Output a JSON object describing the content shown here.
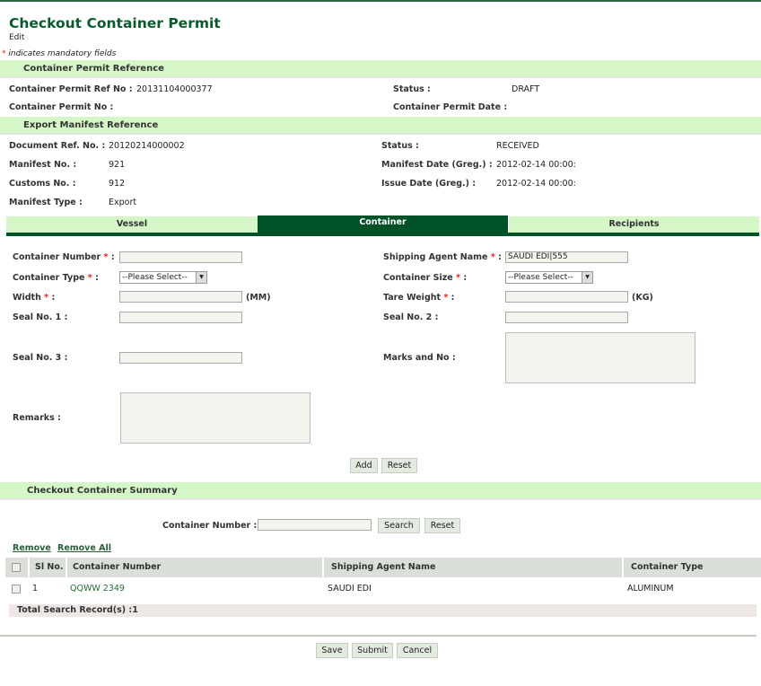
{
  "header": {
    "title": "Checkout Container Permit",
    "subtitle": "Edit",
    "mandatory_note": "indicates mandatory fields",
    "asterisk": "*"
  },
  "permit_ref": {
    "section": "Container Permit Reference",
    "ref_no_label": "Container Permit Ref No :",
    "ref_no": "20131104000377",
    "status_label": "Status :",
    "status": "DRAFT",
    "permit_no_label": "Container Permit No :",
    "permit_date_label": "Container Permit Date :"
  },
  "manifest_ref": {
    "section": "Export Manifest Reference",
    "doc_ref_label": "Document Ref. No. :",
    "doc_ref": "20120214000002",
    "status_label": "Status :",
    "status": "RECEIVED",
    "manifest_no_label": "Manifest No. :",
    "manifest_no": "921",
    "manifest_date_label": "Manifest Date (Greg.) :",
    "manifest_date": "2012-02-14 00:00:",
    "customs_no_label": "Customs No. :",
    "customs_no": "912",
    "issue_date_label": "Issue Date (Greg.) :",
    "issue_date": "2012-02-14 00:00:",
    "manifest_type_label": "Manifest Type :",
    "manifest_type": "Export"
  },
  "tabs": [
    {
      "label": "Vessel"
    },
    {
      "label": "Container",
      "active": true
    },
    {
      "label": "Recipients"
    }
  ],
  "form": {
    "container_number": "Container Number",
    "shipping_agent": "Shipping Agent Name",
    "shipping_agent_value": "SAUDI EDI|555",
    "container_type": "Container Type",
    "container_type_value": "--Please Select--",
    "container_size": "Container Size",
    "container_size_value": "--Please Select--",
    "width": "Width",
    "width_unit": "(MM)",
    "tare_weight": "Tare Weight",
    "tare_unit": "(KG)",
    "seal1": "Seal No. 1 :",
    "seal2": "Seal No. 2 :",
    "seal3": "Seal No. 3 :",
    "marks": "Marks and No :",
    "remarks": "Remarks :",
    "colon": ":",
    "add": "Add",
    "reset": "Reset"
  },
  "summary": {
    "section": "Checkout Container Summary",
    "search_label": "Container Number :",
    "search": "Search",
    "reset": "Reset",
    "remove": "Remove",
    "remove_all": "Remove All",
    "columns": [
      "Sl No.",
      "Container Number",
      "Shipping Agent Name",
      "Container Type"
    ],
    "rows": [
      {
        "sl": "1",
        "container": "QQWW 2349",
        "agent": "SAUDI EDI",
        "type": "ALUMINUM"
      }
    ],
    "total": "Total Search Record(s) :1"
  },
  "footer": {
    "save": "Save",
    "submit": "Submit",
    "cancel": "Cancel"
  }
}
